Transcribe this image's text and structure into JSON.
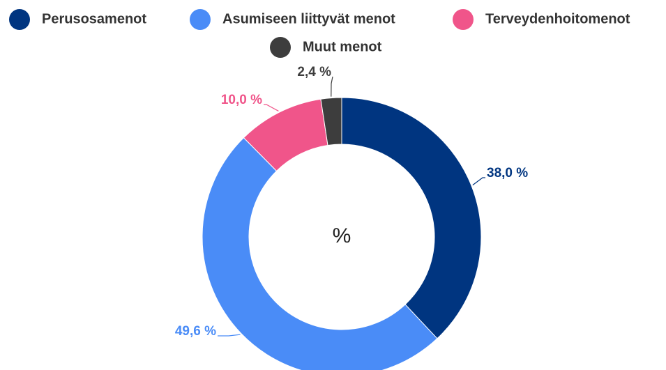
{
  "chart_data": {
    "type": "donut",
    "center_label": "%",
    "categories": [
      "Perusosamenot",
      "Asumiseen liittyvät menot",
      "Terveydenhoitomenot",
      "Muut menot"
    ],
    "values": [
      38.0,
      49.6,
      10.0,
      2.4
    ],
    "value_labels": [
      "38,0 %",
      "49,6 %",
      "10,0 %",
      "2,4 %"
    ],
    "colors": [
      "#003580",
      "#4a8cf7",
      "#f0558a",
      "#3d3d3d"
    ],
    "legend": "top"
  }
}
